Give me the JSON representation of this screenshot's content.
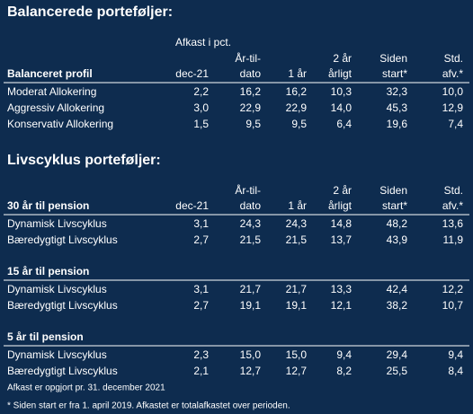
{
  "sections": [
    {
      "title": "Balancerede porteføljer:",
      "subtitle": "Afkast i pct.",
      "tables": [
        {
          "header": [
            [
              "Balanceret profil"
            ],
            [
              "dec-21"
            ],
            [
              "År-til-",
              "dato"
            ],
            [
              "1 år"
            ],
            [
              "2 år",
              "årligt"
            ],
            [
              "Siden",
              "start*"
            ],
            [
              "Std.",
              "afv.*"
            ]
          ],
          "rows": [
            [
              "Moderat Allokering",
              "2,2",
              "16,2",
              "16,2",
              "10,3",
              "32,3",
              "10,0"
            ],
            [
              "Aggressiv Allokering",
              "3,0",
              "22,9",
              "22,9",
              "14,0",
              "45,3",
              "12,9"
            ],
            [
              "Konservativ Allokering",
              "1,5",
              "9,5",
              "9,5",
              "6,4",
              "19,6",
              "7,4"
            ]
          ]
        }
      ]
    },
    {
      "title": "Livscyklus porteføljer:",
      "tables": [
        {
          "header": [
            [
              "30 år til pension"
            ],
            [
              "dec-21"
            ],
            [
              "År-til-",
              "dato"
            ],
            [
              "1 år"
            ],
            [
              "2 år",
              "årligt"
            ],
            [
              "Siden",
              "start*"
            ],
            [
              "Std.",
              "afv.*"
            ]
          ],
          "rows": [
            [
              "Dynamisk Livscyklus",
              "3,1",
              "24,3",
              "24,3",
              "14,8",
              "48,2",
              "13,6"
            ],
            [
              "Bæredygtigt Livscyklus",
              "2,7",
              "21,5",
              "21,5",
              "13,7",
              "43,9",
              "11,9"
            ]
          ]
        },
        {
          "header": [
            [
              "15 år til pension"
            ]
          ],
          "rows": [
            [
              "Dynamisk Livscyklus",
              "3,1",
              "21,7",
              "21,7",
              "13,3",
              "42,4",
              "12,2"
            ],
            [
              "Bæredygtigt Livscyklus",
              "2,7",
              "19,1",
              "19,1",
              "12,1",
              "38,2",
              "10,7"
            ]
          ]
        },
        {
          "header": [
            [
              "5 år til pension"
            ]
          ],
          "rows": [
            [
              "Dynamisk Livscyklus",
              "2,3",
              "15,0",
              "15,0",
              "9,4",
              "29,4",
              "9,4"
            ],
            [
              "Bæredygtigt Livscyklus",
              "2,1",
              "12,7",
              "12,7",
              "8,2",
              "25,5",
              "8,4"
            ]
          ]
        }
      ]
    }
  ],
  "footnotes": [
    "Afkast er opgjort pr. 31. december 2021",
    "* Siden start er fra 1. april 2019. Afkastet er totalafkastet over perioden."
  ]
}
